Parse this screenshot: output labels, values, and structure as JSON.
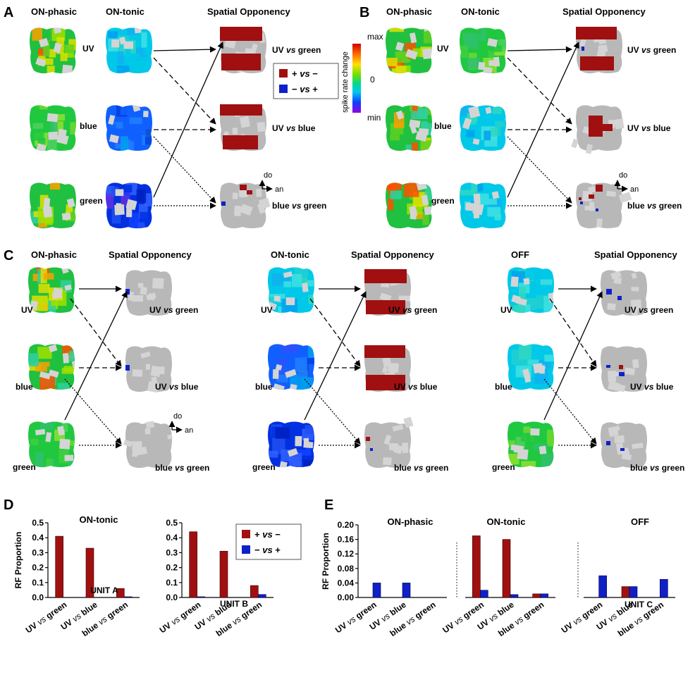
{
  "colors": {
    "plus_minus": "#a01010",
    "minus_plus": "#1020c8",
    "gray": "#b8b8b8",
    "gray_light": "#d4d4d4"
  },
  "panel_letters": [
    "A",
    "B",
    "C",
    "D",
    "E"
  ],
  "headers": {
    "on_phasic": "ON-phasic",
    "on_tonic": "ON-tonic",
    "off": "OFF",
    "spatial_opponency": "Spatial Opponency"
  },
  "stimuli": {
    "uv": "UV",
    "blue": "blue",
    "green": "green"
  },
  "comparisons": {
    "uv_green_a": "UV ",
    "uv_green_b": "vs",
    "uv_green_c": " green",
    "uv_blue_a": "UV ",
    "uv_blue_b": "vs",
    "uv_blue_c": " blue",
    "blue_green_a": "blue ",
    "blue_green_b": "vs",
    "blue_green_c": " green"
  },
  "colorbar": {
    "label": "spike rate change",
    "max": "max",
    "zero": "0",
    "min": "min"
  },
  "legend": {
    "plus_minus_a": "+ ",
    "plus_minus_b": "vs",
    "plus_minus_c": " −",
    "minus_plus_a": "− ",
    "minus_plus_b": "vs",
    "minus_plus_c": " +"
  },
  "orientation": {
    "dorsal": "do",
    "anterior": "an"
  },
  "chart_data": [
    {
      "panel": "D",
      "type": "bar",
      "title": "ON-tonic",
      "annotation": "UNIT A",
      "ylabel": "RF Proportion",
      "ylim": [
        0,
        0.5
      ],
      "yticks": [
        "0.0",
        "0.1",
        "0.2",
        "0.3",
        "0.4",
        "0.5"
      ],
      "categories": [
        "UV vs green",
        "UV vs blue",
        "blue vs green"
      ],
      "series": [
        {
          "name": "+ vs −",
          "values": [
            0.41,
            0.33,
            0.06
          ]
        },
        {
          "name": "− vs +",
          "values": [
            0.0,
            0.0,
            0.005
          ]
        }
      ]
    },
    {
      "panel": "D",
      "type": "bar",
      "title": "",
      "annotation": "UNIT B",
      "ylabel": "",
      "ylim": [
        0,
        0.5
      ],
      "yticks": [
        "0.0",
        "0.1",
        "0.2",
        "0.3",
        "0.4",
        "0.5"
      ],
      "categories": [
        "UV vs green",
        "UV vs blue",
        "blue vs green"
      ],
      "series": [
        {
          "name": "+ vs −",
          "values": [
            0.44,
            0.31,
            0.08
          ]
        },
        {
          "name": "− vs +",
          "values": [
            0.005,
            0.0,
            0.02
          ]
        }
      ]
    },
    {
      "panel": "E",
      "type": "bar",
      "title": "ON-phasic",
      "annotation": "",
      "ylabel": "RF Proportion",
      "ylim": [
        0,
        0.2
      ],
      "yticks": [
        "0.00",
        "0.04",
        "0.08",
        "0.12",
        "0.16",
        "0.20"
      ],
      "categories": [
        "UV vs green",
        "UV vs blue",
        "blue vs green"
      ],
      "series": [
        {
          "name": "+ vs −",
          "values": [
            0.0,
            0.0,
            0.0
          ]
        },
        {
          "name": "− vs +",
          "values": [
            0.04,
            0.04,
            0.0
          ]
        }
      ]
    },
    {
      "panel": "E",
      "type": "bar",
      "title": "ON-tonic",
      "annotation": "",
      "ylabel": "",
      "ylim": [
        0,
        0.2
      ],
      "yticks": [],
      "categories": [
        "UV vs green",
        "UV vs blue",
        "blue vs green"
      ],
      "series": [
        {
          "name": "+ vs −",
          "values": [
            0.17,
            0.16,
            0.01
          ]
        },
        {
          "name": "− vs +",
          "values": [
            0.02,
            0.008,
            0.01
          ]
        }
      ]
    },
    {
      "panel": "E",
      "type": "bar",
      "title": "OFF",
      "annotation": "UNIT C",
      "ylabel": "",
      "ylim": [
        0,
        0.2
      ],
      "yticks": [],
      "categories": [
        "UV vs green",
        "UV vs blue",
        "blue vs green"
      ],
      "series": [
        {
          "name": "+ vs −",
          "values": [
            0.0,
            0.03,
            0.0
          ]
        },
        {
          "name": "− vs +",
          "values": [
            0.06,
            0.03,
            0.05
          ]
        }
      ]
    }
  ]
}
